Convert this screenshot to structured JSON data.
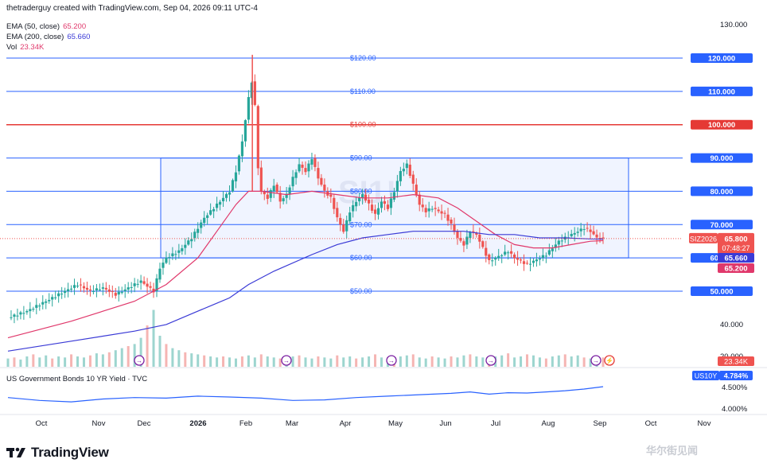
{
  "header": {
    "text": "thetraderguy created with TradingView.com, Sep 04, 2026 09:11 UTC-4"
  },
  "legend": {
    "ema50_label": "EMA (50, close)",
    "ema50_value": "65.200",
    "ema200_label": "EMA (200, close)",
    "ema200_value": "65.660",
    "vol_label": "Vol",
    "vol_value": "23.34K"
  },
  "sub_pane": {
    "title": "US Government Bonds 10 YR Yield · TVC",
    "symbol": "US10Y",
    "value": "4.784%",
    "ticks": [
      "4.500%",
      "4.000%"
    ]
  },
  "brand": {
    "name": "TradingView"
  },
  "watermark": {
    "symbol": "SI1!",
    "corner": "华尔街见闻"
  },
  "colors": {
    "up": "#26a69a",
    "down": "#ef5350",
    "ema50": "#e0386b",
    "ema200": "#3a3ad6",
    "hline": "#2962ff",
    "red_line": "#e53935",
    "box": "#2962ff",
    "box_fill": "#e6ecff"
  },
  "chart_data": {
    "type": "candlestick",
    "symbol": "SIZ2026",
    "last_price": "65.800",
    "countdown": "07:48:27",
    "y_axis_ticks": [
      "130.000",
      "40.000",
      "20.000"
    ],
    "ylim": [
      30,
      132
    ],
    "x_tick_labels": [
      "Oct",
      "Nov",
      "Dec",
      "2026",
      "Feb",
      "Mar",
      "Apr",
      "May",
      "Jun",
      "Jul",
      "Aug",
      "Sep",
      "Oct",
      "Nov"
    ],
    "horizontal_lines": [
      {
        "value": 120,
        "label": "$120.00",
        "axis_label": "120.000",
        "color": "blue"
      },
      {
        "value": 110,
        "label": "$110.00",
        "axis_label": "110.000",
        "color": "blue"
      },
      {
        "value": 100,
        "label": "$100.00",
        "axis_label": "100.000",
        "color": "red"
      },
      {
        "value": 90,
        "label": "$90.00",
        "axis_label": "90.000",
        "color": "blue"
      },
      {
        "value": 80,
        "label": "$80.00",
        "axis_label": "80.000",
        "color": "blue"
      },
      {
        "value": 70,
        "label": "$70.00",
        "axis_label": "70.000",
        "color": "blue"
      },
      {
        "value": 60,
        "label": "$60.00",
        "axis_label": "60.000",
        "color": "blue"
      },
      {
        "value": 50,
        "label": "$50.00",
        "axis_label": "50.000",
        "color": "blue"
      }
    ],
    "range_box": {
      "top": 90,
      "bottom": 60,
      "start": "Dec",
      "end": "Oct"
    },
    "price_path": [
      [
        0,
        42
      ],
      [
        3,
        44
      ],
      [
        6,
        47
      ],
      [
        9,
        50
      ],
      [
        11,
        52
      ],
      [
        13,
        50
      ],
      [
        15,
        51
      ],
      [
        17,
        49
      ],
      [
        19,
        51
      ],
      [
        21,
        53
      ],
      [
        23,
        50
      ],
      [
        24,
        57
      ],
      [
        25,
        60
      ],
      [
        27,
        62
      ],
      [
        29,
        66
      ],
      [
        31,
        72
      ],
      [
        33,
        76
      ],
      [
        35,
        80
      ],
      [
        36,
        86
      ],
      [
        37,
        95
      ],
      [
        38,
        108
      ],
      [
        38.8,
        116
      ],
      [
        39.3,
        90
      ],
      [
        40,
        80
      ],
      [
        41,
        78
      ],
      [
        42,
        82
      ],
      [
        43,
        77
      ],
      [
        44,
        79
      ],
      [
        45,
        84
      ],
      [
        46,
        88
      ],
      [
        47,
        86
      ],
      [
        48,
        90
      ],
      [
        49,
        84
      ],
      [
        50,
        80
      ],
      [
        51,
        78
      ],
      [
        52,
        72
      ],
      [
        53,
        68
      ],
      [
        54,
        74
      ],
      [
        55,
        77
      ],
      [
        56,
        79
      ],
      [
        57,
        76
      ],
      [
        58,
        73
      ],
      [
        59,
        77
      ],
      [
        60,
        75
      ],
      [
        61,
        80
      ],
      [
        62,
        86
      ],
      [
        63,
        88
      ],
      [
        64,
        82
      ],
      [
        65,
        76
      ],
      [
        66,
        74
      ],
      [
        67,
        75
      ],
      [
        68,
        74
      ],
      [
        69,
        73
      ],
      [
        70,
        70
      ],
      [
        71,
        66
      ],
      [
        72,
        64
      ],
      [
        73,
        68
      ],
      [
        74,
        67
      ],
      [
        75,
        63
      ],
      [
        76,
        59
      ],
      [
        77,
        60
      ],
      [
        78,
        61
      ],
      [
        79,
        62
      ],
      [
        80,
        60
      ],
      [
        81,
        59
      ],
      [
        82,
        58
      ],
      [
        83,
        59
      ],
      [
        84,
        60
      ],
      [
        85,
        61
      ],
      [
        86,
        63
      ],
      [
        87,
        65
      ],
      [
        88,
        66
      ],
      [
        89,
        67
      ],
      [
        90,
        68
      ],
      [
        91,
        69
      ],
      [
        92,
        68
      ],
      [
        93,
        66
      ],
      [
        94,
        65.8
      ]
    ],
    "ema50_path": [
      [
        0,
        36
      ],
      [
        10,
        41
      ],
      [
        20,
        47
      ],
      [
        25,
        52
      ],
      [
        30,
        60
      ],
      [
        33,
        68
      ],
      [
        36,
        76
      ],
      [
        38,
        80
      ],
      [
        40,
        80
      ],
      [
        44,
        79
      ],
      [
        48,
        80
      ],
      [
        52,
        79
      ],
      [
        56,
        78
      ],
      [
        60,
        78
      ],
      [
        64,
        79
      ],
      [
        68,
        78
      ],
      [
        71,
        75
      ],
      [
        74,
        71
      ],
      [
        77,
        67
      ],
      [
        80,
        64
      ],
      [
        83,
        63
      ],
      [
        86,
        63
      ],
      [
        89,
        64
      ],
      [
        92,
        65
      ],
      [
        94,
        65.2
      ]
    ],
    "ema200_path": [
      [
        0,
        32
      ],
      [
        10,
        35
      ],
      [
        20,
        38
      ],
      [
        25,
        40
      ],
      [
        30,
        44
      ],
      [
        35,
        48
      ],
      [
        38,
        52
      ],
      [
        42,
        56
      ],
      [
        48,
        61
      ],
      [
        52,
        64
      ],
      [
        56,
        66
      ],
      [
        60,
        67
      ],
      [
        64,
        68
      ],
      [
        68,
        68
      ],
      [
        72,
        68
      ],
      [
        76,
        67
      ],
      [
        80,
        67
      ],
      [
        84,
        66
      ],
      [
        88,
        66
      ],
      [
        92,
        65.7
      ],
      [
        94,
        65.66
      ]
    ],
    "volume_series": [
      8,
      9,
      7,
      10,
      12,
      9,
      11,
      8,
      10,
      9,
      12,
      10,
      9,
      11,
      13,
      12,
      14,
      16,
      18,
      20,
      22,
      28,
      40,
      55,
      30,
      22,
      18,
      16,
      14,
      13,
      12,
      11,
      10,
      9,
      10,
      9,
      8,
      10,
      11,
      9,
      12,
      10,
      9,
      8,
      9,
      10,
      11,
      9,
      8,
      10,
      9,
      8,
      11,
      9,
      10,
      8,
      9,
      10,
      12,
      9,
      8,
      9,
      10,
      11,
      12,
      9,
      8,
      10,
      9,
      8,
      10,
      9,
      11,
      12,
      10,
      9,
      8,
      10,
      11,
      13,
      9,
      10,
      12,
      11,
      9,
      8,
      10,
      11,
      12,
      10,
      11,
      9,
      8,
      10,
      9
    ],
    "us10y_path": [
      [
        0,
        4.4
      ],
      [
        5,
        4.3
      ],
      [
        10,
        4.25
      ],
      [
        15,
        4.35
      ],
      [
        20,
        4.4
      ],
      [
        25,
        4.38
      ],
      [
        30,
        4.45
      ],
      [
        35,
        4.42
      ],
      [
        40,
        4.38
      ],
      [
        45,
        4.3
      ],
      [
        50,
        4.32
      ],
      [
        55,
        4.4
      ],
      [
        60,
        4.45
      ],
      [
        65,
        4.5
      ],
      [
        70,
        4.55
      ],
      [
        73,
        4.6
      ],
      [
        76,
        4.52
      ],
      [
        79,
        4.57
      ],
      [
        82,
        4.56
      ],
      [
        85,
        4.6
      ],
      [
        88,
        4.64
      ],
      [
        91,
        4.7
      ],
      [
        94,
        4.784
      ]
    ],
    "x_pos_note": "price_path / ema / us10y x coordinates are candle index from Oct (0) to Sep (94)"
  }
}
